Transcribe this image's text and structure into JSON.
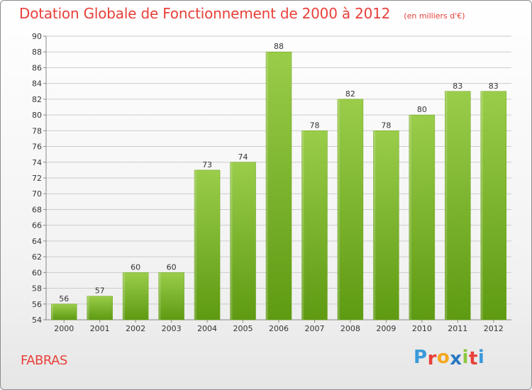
{
  "header": {
    "title": "Dotation Globale de Fonctionnement de 2000 à 2012",
    "unit": "(en milliers d'€)"
  },
  "footer": {
    "entity": "FABRAS",
    "brand": [
      "P",
      "r",
      "o",
      "x",
      "i",
      "t",
      "i"
    ],
    "brand_colors": [
      "#3a9ad9",
      "#e8403a",
      "#f4a81d",
      "#2a78c0",
      "#8dc63f",
      "#e8403a",
      "#3a9ad9"
    ]
  },
  "colors": {
    "bar_top": "#9acd4a",
    "bar_bottom": "#5e9a12",
    "grid": "#cccccc",
    "title": "#e8403a"
  },
  "chart_data": {
    "type": "bar",
    "categories": [
      "2000",
      "2001",
      "2002",
      "2003",
      "2004",
      "2005",
      "2006",
      "2007",
      "2008",
      "2009",
      "2010",
      "2011",
      "2012"
    ],
    "values": [
      56,
      57,
      60,
      60,
      73,
      74,
      88,
      78,
      82,
      78,
      80,
      83,
      83
    ],
    "ylim": [
      54,
      90
    ],
    "yticks": [
      54,
      56,
      58,
      60,
      62,
      64,
      66,
      68,
      70,
      72,
      74,
      76,
      78,
      80,
      82,
      84,
      86,
      88,
      90
    ],
    "grid": true,
    "data_labels": true
  }
}
